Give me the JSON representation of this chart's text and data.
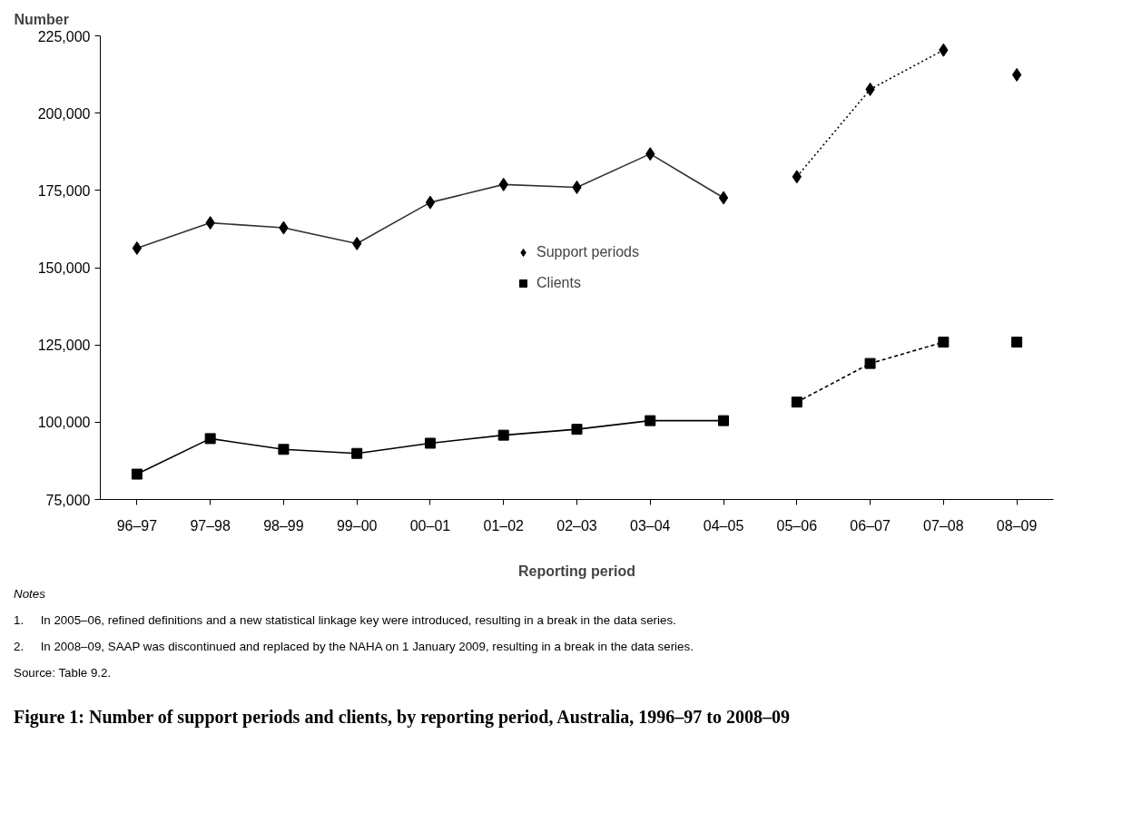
{
  "chart_data": {
    "type": "line",
    "title": "Figure 1: Number of support periods and clients, by reporting period, Australia, 1996–97 to 2008–09",
    "xlabel": "Reporting period",
    "ylabel": "Number",
    "categories": [
      "96–97",
      "97–98",
      "98–99",
      "99–00",
      "00–01",
      "01–02",
      "02–03",
      "03–04",
      "04–05",
      "05–06",
      "06–07",
      "07–08",
      "08–09"
    ],
    "ylim": [
      75000,
      225000
    ],
    "yticks": [
      {
        "value": 75000,
        "label": "75,000"
      },
      {
        "value": 100000,
        "label": "100,000"
      },
      {
        "value": 125000,
        "label": "125,000"
      },
      {
        "value": 150000,
        "label": "150,000"
      },
      {
        "value": 175000,
        "label": "175,000"
      },
      {
        "value": 200000,
        "label": "200,000"
      },
      {
        "value": 225000,
        "label": "225,000"
      }
    ],
    "legend": "center",
    "grid": false,
    "annotations": [
      "Notes",
      "1.     In 2005–06, refined definitions and a new statistical linkage key were introduced, resulting in a break in the data series.",
      "2.     In 2008–09, SAAP was discontinued and replaced by the NAHA on 1 January 2009, resulting in a break in the data series.",
      "Source: Table 9.2."
    ],
    "series": [
      {
        "line_style": "solid",
        "color": "#333333",
        "values": [
          156300,
          164500,
          162900,
          157800,
          171100,
          176900,
          176000,
          186800,
          172600,
          null,
          null,
          null,
          null
        ]
      },
      {
        "line_style": "dotted",
        "color": "#000000",
        "values": [
          null,
          null,
          null,
          null,
          null,
          null,
          null,
          null,
          null,
          179400,
          207700,
          220400,
          null
        ]
      },
      {
        "line_style": "solid",
        "color": "#000000",
        "values": [
          83200,
          94700,
          91200,
          89900,
          93200,
          95800,
          97700,
          100500,
          100500,
          null,
          null,
          null,
          null
        ]
      },
      {
        "line_style": "dashed",
        "color": "#000000",
        "values": [
          null,
          null,
          null,
          null,
          null,
          null,
          null,
          null,
          null,
          106500,
          119000,
          125900,
          null
        ]
      },
      {
        "name": "Support periods",
        "type": "scatter",
        "marker": "diamond",
        "color": "#000000",
        "values": [
          156300,
          164500,
          162900,
          157800,
          171100,
          176900,
          176000,
          186800,
          172600,
          179400,
          207700,
          220400,
          212400
        ]
      },
      {
        "name": "Clients",
        "type": "scatter",
        "marker": "square",
        "color": "#000000",
        "values": [
          83200,
          94700,
          91200,
          89900,
          93200,
          95800,
          97700,
          100500,
          100500,
          106500,
          119000,
          125900,
          125900
        ]
      }
    ]
  }
}
